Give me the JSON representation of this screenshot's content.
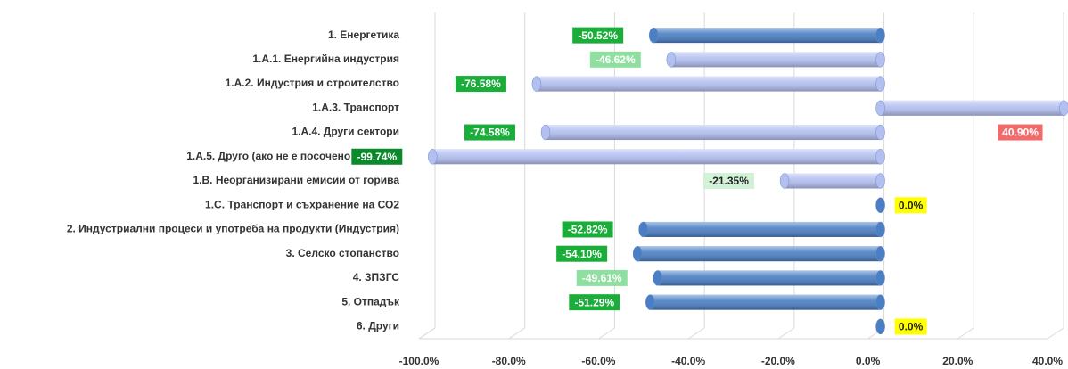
{
  "chart_data": {
    "type": "bar",
    "orientation": "horizontal",
    "categories": [
      "1. Енергетика",
      "1.А.1. Енергийна индустрия",
      "1.А.2. Индустрия и строителство",
      "1.А.3. Транспорт",
      "1.А.4. Други сектори",
      "1.А.5. Друго (ако не е посочено другаде)",
      "1.В. Неорганизирани емисии от горива",
      "1.С. Транспорт и съхранение на СО2",
      "2. Индустриални процеси и употреба на продукти (Индустрия)",
      "3. Селско стопанство",
      "4. ЗПЗГС",
      "5. Отпадък",
      "6. Други"
    ],
    "values": [
      -50.52,
      -46.62,
      -76.58,
      40.9,
      -74.58,
      -99.74,
      -21.35,
      0.0,
      -52.82,
      -54.1,
      -49.61,
      -51.29,
      0.0
    ],
    "value_labels": [
      "-50.52%",
      "-46.62%",
      "-76.58%",
      "40.90%",
      "-74.58%",
      "-99.74%",
      "-21.35%",
      "0.0%",
      "-52.82%",
      "-54.10%",
      "-49.61%",
      "-51.29%",
      "0.0%"
    ],
    "colors": [
      "#4a7fc4",
      "#b3bff0",
      "#b3bff0",
      "#b3bff0",
      "#b3bff0",
      "#b3bff0",
      "#b3bff0",
      "#4a7fc4",
      "#4a7fc4",
      "#4a7fc4",
      "#4a7fc4",
      "#4a7fc4",
      "#4a7fc4"
    ],
    "label_colors": [
      "#1aad3a",
      "#8fe0a0",
      "#1aad3a",
      "#f26b6b",
      "#1aad3a",
      "#0a8a2a",
      "#d2f2d8",
      "#ffff00",
      "#1aad3a",
      "#1aad3a",
      "#8fe0a0",
      "#1aad3a",
      "#ffff00"
    ],
    "xlim": [
      -100,
      40
    ],
    "xticks": [
      {
        "value": -100,
        "label": "-100.0%"
      },
      {
        "value": -80,
        "label": "-80.0%"
      },
      {
        "value": -60,
        "label": "-60.0%"
      },
      {
        "value": -40,
        "label": "-40.0%"
      },
      {
        "value": -20,
        "label": "-20.0%"
      },
      {
        "value": 0,
        "label": "0.0%"
      },
      {
        "value": 20,
        "label": "20.0%"
      },
      {
        "value": 40,
        "label": "40.0%"
      }
    ],
    "grid": true
  }
}
